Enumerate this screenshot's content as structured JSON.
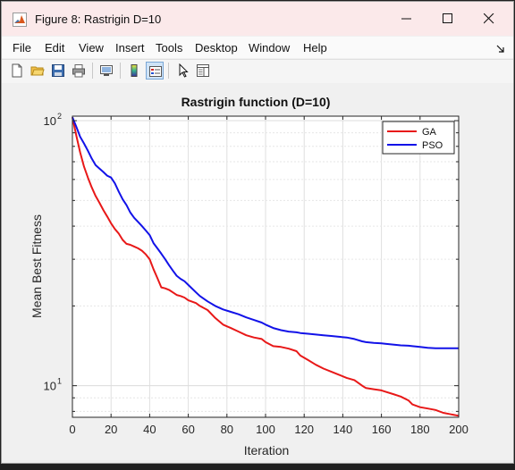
{
  "window": {
    "title": "Figure 8: Rastrigin D=10",
    "minimize_icon": "minimize-icon",
    "maximize_icon": "maximize-icon",
    "close_icon": "close-icon"
  },
  "menu": {
    "items": [
      "File",
      "Edit",
      "View",
      "Insert",
      "Tools",
      "Desktop",
      "Window",
      "Help"
    ]
  },
  "toolbar": {
    "icons": [
      "new-figure-icon",
      "open-file-icon",
      "save-icon",
      "print-icon",
      "link-plot-icon",
      "colorbar-icon",
      "legend-icon",
      "pointer-icon",
      "property-inspector-icon"
    ]
  },
  "chart_data": {
    "type": "line",
    "title": "Rastrigin function (D=10)",
    "xlabel": "Iteration",
    "ylabel": "Mean Best Fitness",
    "xlim": [
      0,
      200
    ],
    "ylim": [
      7.6,
      104
    ],
    "yscale": "log",
    "x_ticks": [
      0,
      20,
      40,
      60,
      80,
      100,
      120,
      140,
      160,
      180,
      200
    ],
    "y_ticks": [
      {
        "value": 10,
        "base": "10",
        "exp": "1"
      },
      {
        "value": 100,
        "base": "10",
        "exp": "2"
      }
    ],
    "grid": true,
    "legend_position": "top-right",
    "colors": {
      "GA": "#e81818",
      "PSO": "#1212e8"
    },
    "series": [
      {
        "name": "GA",
        "x": [
          0,
          2,
          4,
          6,
          8,
          10,
          12,
          14,
          16,
          18,
          20,
          22,
          24,
          26,
          28,
          30,
          32,
          34,
          36,
          38,
          40,
          42,
          44,
          46,
          48,
          50,
          52,
          54,
          56,
          58,
          60,
          64,
          66,
          70,
          74,
          78,
          82,
          86,
          90,
          94,
          98,
          100,
          104,
          108,
          112,
          116,
          118,
          122,
          126,
          130,
          134,
          138,
          142,
          146,
          150,
          152,
          156,
          160,
          162,
          166,
          170,
          174,
          176,
          180,
          184,
          188,
          192,
          196,
          200
        ],
        "y": [
          103,
          88,
          76,
          67,
          61,
          56,
          52,
          49,
          46,
          43.5,
          41,
          39,
          37.5,
          35.5,
          34.3,
          34,
          33.5,
          33,
          32.3,
          31.3,
          30,
          27.5,
          25.5,
          23.5,
          23.3,
          23,
          22.5,
          22,
          21.8,
          21.5,
          21,
          20.5,
          20,
          19.3,
          18,
          17,
          16.5,
          16,
          15.5,
          15.2,
          15,
          14.6,
          14.1,
          14,
          13.8,
          13.5,
          13,
          12.5,
          12,
          11.6,
          11.3,
          11,
          10.7,
          10.5,
          10,
          9.8,
          9.7,
          9.6,
          9.5,
          9.3,
          9.1,
          8.8,
          8.5,
          8.3,
          8.2,
          8.1,
          7.9,
          7.8,
          7.7
        ]
      },
      {
        "name": "PSO",
        "x": [
          0,
          2,
          4,
          6,
          8,
          10,
          12,
          14,
          16,
          18,
          20,
          22,
          24,
          26,
          28,
          30,
          32,
          34,
          36,
          38,
          40,
          42,
          44,
          46,
          48,
          50,
          52,
          54,
          56,
          58,
          60,
          64,
          66,
          70,
          74,
          78,
          82,
          86,
          90,
          94,
          98,
          100,
          104,
          108,
          112,
          116,
          118,
          122,
          126,
          130,
          134,
          138,
          142,
          146,
          150,
          152,
          156,
          160,
          162,
          166,
          170,
          174,
          176,
          180,
          184,
          188,
          192,
          196,
          200
        ],
        "y": [
          103,
          95,
          87,
          82,
          77,
          72,
          68,
          66,
          64,
          62,
          61,
          58,
          54,
          50.5,
          48,
          45,
          43,
          41.5,
          40,
          38.5,
          37,
          34.5,
          33,
          31.5,
          30,
          28.5,
          27.2,
          26,
          25.3,
          24.8,
          24,
          22.5,
          21.8,
          20.8,
          20,
          19.4,
          19,
          18.6,
          18.1,
          17.7,
          17.3,
          17,
          16.5,
          16.2,
          16,
          15.9,
          15.8,
          15.7,
          15.6,
          15.5,
          15.4,
          15.3,
          15.2,
          15,
          14.7,
          14.6,
          14.5,
          14.45,
          14.4,
          14.3,
          14.2,
          14.15,
          14.1,
          14,
          13.9,
          13.85,
          13.85,
          13.85,
          13.85
        ]
      }
    ]
  }
}
